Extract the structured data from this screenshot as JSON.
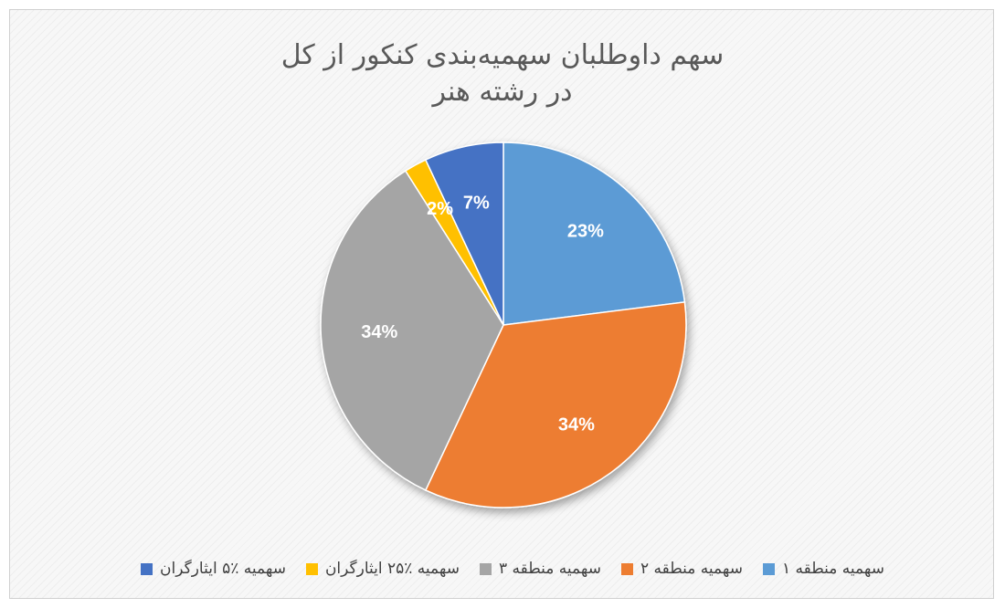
{
  "chart_data": {
    "type": "pie",
    "title_lines": [
      "سهم داوطلبان سهمیه‌بندی کنکور از کل",
      "در رشته هنر"
    ],
    "series": [
      {
        "name": "سهمیه منطقه ۱",
        "value": 23,
        "label": "23%",
        "color": "#5B9BD5"
      },
      {
        "name": "سهمیه منطقه ۲",
        "value": 34,
        "label": "34%",
        "color": "#ED7D31"
      },
      {
        "name": "سهمیه منطقه ۳",
        "value": 34,
        "label": "34%",
        "color": "#A5A5A5"
      },
      {
        "name": "سهمیه ٪۲۵ ایثارگران",
        "value": 2,
        "label": "2%",
        "color": "#FFC000"
      },
      {
        "name": "سهمیه ٪۵ ایثارگران",
        "value": 7,
        "label": "7%",
        "color": "#4472C4"
      }
    ],
    "legend_position": "bottom"
  }
}
